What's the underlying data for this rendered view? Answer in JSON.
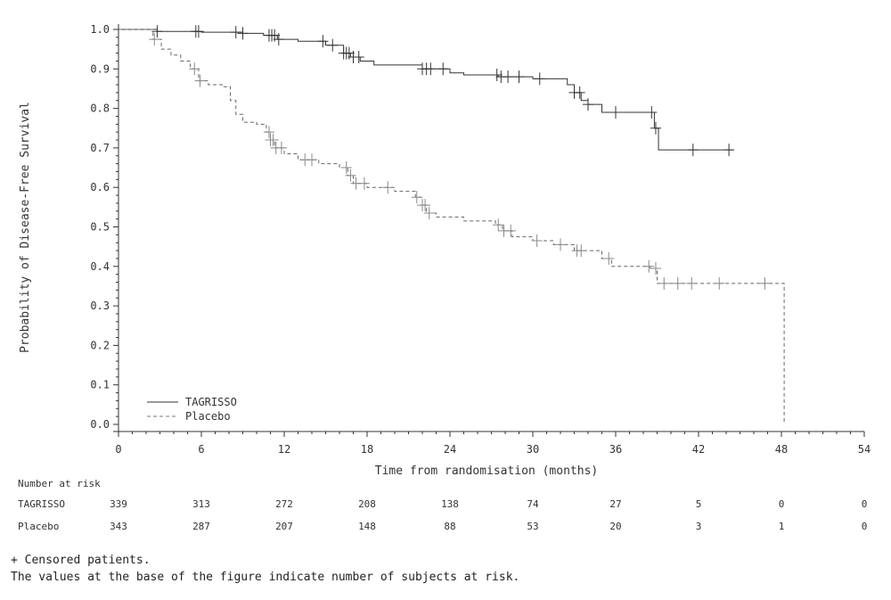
{
  "chart_data": {
    "type": "line",
    "subtype": "kaplan-meier",
    "title": "",
    "xlabel": "Time from randomisation (months)",
    "ylabel": "Probability of Disease-Free Survival",
    "xlim": [
      0,
      54
    ],
    "ylim": [
      0.0,
      1.0
    ],
    "x_ticks": [
      "0",
      "6",
      "12",
      "18",
      "24",
      "30",
      "36",
      "42",
      "48",
      "54"
    ],
    "y_ticks": [
      "0.0",
      "0.1",
      "0.2",
      "0.3",
      "0.4",
      "0.5",
      "0.6",
      "0.7",
      "0.8",
      "0.9",
      "1.0"
    ],
    "grid": false,
    "legend_position": "bottom-left",
    "series": [
      {
        "name": "TAGRISSO",
        "line_style": "solid",
        "color": "#333333",
        "steps": [
          [
            0,
            1.0
          ],
          [
            2.8,
            0.995
          ],
          [
            6,
            0.993
          ],
          [
            9,
            0.99
          ],
          [
            10.5,
            0.985
          ],
          [
            11.5,
            0.975
          ],
          [
            13,
            0.97
          ],
          [
            15,
            0.96
          ],
          [
            16.3,
            0.94
          ],
          [
            16.8,
            0.93
          ],
          [
            17.5,
            0.92
          ],
          [
            18.5,
            0.91
          ],
          [
            22,
            0.9
          ],
          [
            24,
            0.89
          ],
          [
            25,
            0.885
          ],
          [
            27.5,
            0.88
          ],
          [
            30,
            0.875
          ],
          [
            32.5,
            0.86
          ],
          [
            33,
            0.84
          ],
          [
            33.5,
            0.82
          ],
          [
            34,
            0.81
          ],
          [
            35,
            0.79
          ],
          [
            38.8,
            0.75
          ],
          [
            39.1,
            0.695
          ],
          [
            44.5,
            0.695
          ]
        ],
        "censored": [
          2.8,
          5.6,
          5.8,
          8.5,
          9,
          10.9,
          11.1,
          11.3,
          11.6,
          14.8,
          15.5,
          16.3,
          16.5,
          16.7,
          17.0,
          17.4,
          22.0,
          22.3,
          22.6,
          23.5,
          27.4,
          27.7,
          28.2,
          29.0,
          30.5,
          33.0,
          33.4,
          34.0,
          36.0,
          38.6,
          38.9,
          41.6,
          44.2
        ]
      },
      {
        "name": "Placebo",
        "line_style": "dashed",
        "color": "#666666",
        "steps": [
          [
            0,
            1.0
          ],
          [
            2.5,
            0.975
          ],
          [
            3.1,
            0.95
          ],
          [
            3.8,
            0.935
          ],
          [
            4.5,
            0.92
          ],
          [
            5.2,
            0.9
          ],
          [
            5.8,
            0.87
          ],
          [
            6.5,
            0.86
          ],
          [
            7.5,
            0.855
          ],
          [
            8.1,
            0.82
          ],
          [
            8.5,
            0.785
          ],
          [
            9.0,
            0.765
          ],
          [
            10.0,
            0.76
          ],
          [
            10.7,
            0.74
          ],
          [
            11.0,
            0.72
          ],
          [
            11.3,
            0.7
          ],
          [
            12.0,
            0.685
          ],
          [
            13.0,
            0.67
          ],
          [
            14.5,
            0.66
          ],
          [
            16.0,
            0.65
          ],
          [
            16.6,
            0.63
          ],
          [
            17.0,
            0.61
          ],
          [
            18.0,
            0.6
          ],
          [
            20.0,
            0.59
          ],
          [
            21.5,
            0.575
          ],
          [
            22.0,
            0.555
          ],
          [
            22.3,
            0.535
          ],
          [
            23.0,
            0.525
          ],
          [
            25.0,
            0.515
          ],
          [
            27.3,
            0.505
          ],
          [
            27.8,
            0.49
          ],
          [
            28.5,
            0.475
          ],
          [
            30.0,
            0.465
          ],
          [
            31.5,
            0.455
          ],
          [
            33.0,
            0.44
          ],
          [
            35.0,
            0.42
          ],
          [
            35.7,
            0.4
          ],
          [
            38.5,
            0.395
          ],
          [
            39.0,
            0.357
          ],
          [
            48.2,
            0.357
          ],
          [
            48.2,
            0.0
          ]
        ],
        "censored": [
          2.6,
          5.5,
          5.9,
          10.9,
          11.0,
          11.2,
          11.4,
          11.8,
          13.5,
          14.0,
          16.5,
          16.8,
          17.2,
          17.8,
          19.5,
          21.6,
          22.0,
          22.2,
          22.5,
          27.5,
          27.9,
          28.4,
          30.3,
          32.0,
          33.2,
          33.5,
          35.5,
          38.4,
          38.9,
          39.5,
          40.5,
          41.5,
          43.5,
          46.8
        ]
      }
    ],
    "number_at_risk": {
      "heading": "Number at risk",
      "rows": [
        {
          "label": "TAGRISSO",
          "values": [
            "339",
            "313",
            "272",
            "208",
            "138",
            "74",
            "27",
            "5",
            "0",
            "0"
          ]
        },
        {
          "label": "Placebo",
          "values": [
            "343",
            "287",
            "207",
            "148",
            "88",
            "53",
            "20",
            "3",
            "1",
            "0"
          ]
        }
      ]
    }
  },
  "footnotes": {
    "line1": "+ Censored patients.",
    "line2": "The values at the base of the figure indicate number of subjects at risk."
  }
}
